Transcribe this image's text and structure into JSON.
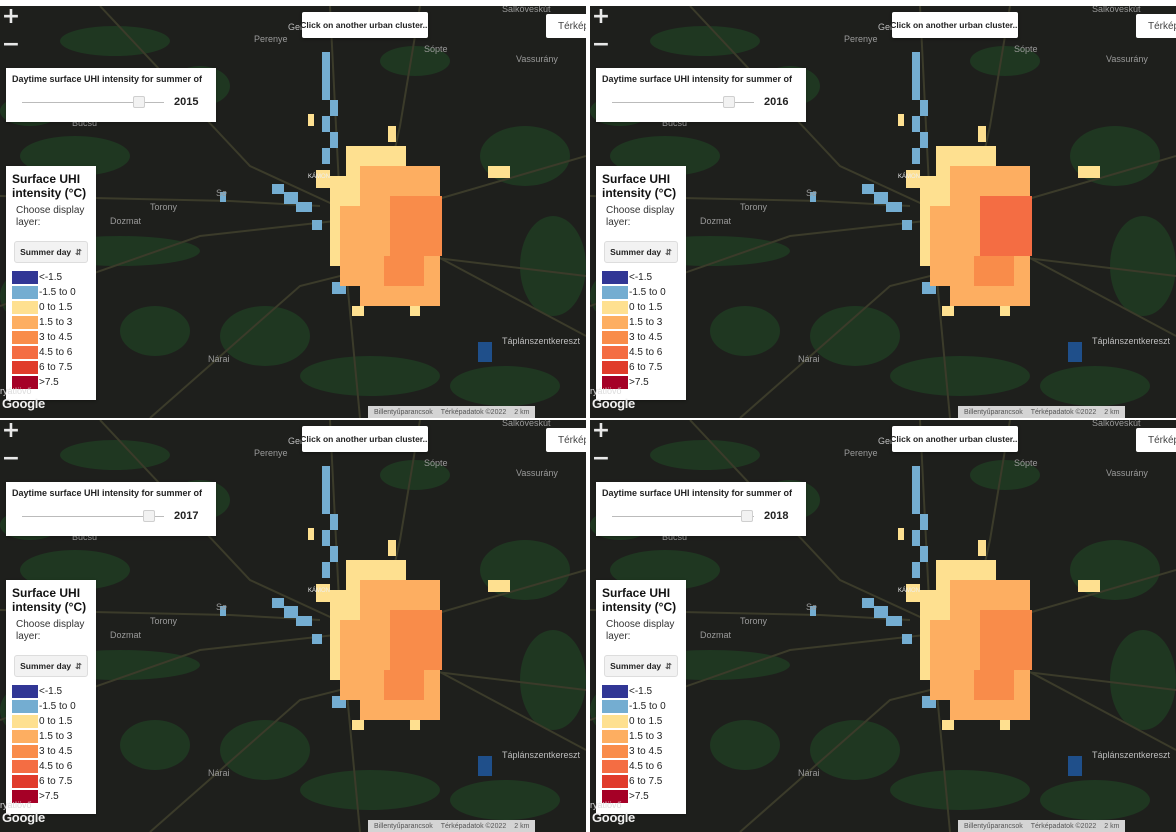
{
  "colors": {
    "background": "#1e1f1c",
    "forest": "#1f3a22",
    "road": "#3b3b2a",
    "water": "#1f4f8a"
  },
  "common": {
    "cluster_button": "Click on another urban cluster...",
    "maptype_button": "Térkép",
    "zoom_in": "+",
    "zoom_out": "−",
    "slider_title": "Daytime surface UHI intensity for summer of",
    "legend_title": "Surface UHI intensity (°C)",
    "legend_subtitle": "Choose display layer:",
    "layer_selected": "Summer day",
    "google_logo": "Google",
    "corner_text": "ryátlövő",
    "attribution_shortcuts": "Billentyűparancsok",
    "attribution_mapdata": "Térképadatok ©2022",
    "attribution_scale": "2 km"
  },
  "legend_items": [
    {
      "label": "<-1.5",
      "color": "#313695"
    },
    {
      "label": "-1.5 to 0",
      "color": "#74add1"
    },
    {
      "label": "0 to 1.5",
      "color": "#fee090"
    },
    {
      "label": "1.5 to 3",
      "color": "#fdae61"
    },
    {
      "label": "3 to 4.5",
      "color": "#f98c4a"
    },
    {
      "label": "4.5 to 6",
      "color": "#f46d43"
    },
    {
      "label": "6 to 7.5",
      "color": "#e03b2b"
    },
    {
      "label": ">7.5",
      "color": "#a50026"
    }
  ],
  "places": {
    "perenye": "Perenye",
    "gencsapati": "Gencsapáti",
    "sopte": "Sópte",
    "vassurany": "Vassurány",
    "salkoveskut": "Salköveskút",
    "bucsu": "Bucsu",
    "dozmat": "Dozmat",
    "torony": "Torony",
    "se": "Se",
    "narai": "Nárai",
    "taplanszentkereszt": "Táplánszentkereszt",
    "kamon": "KÁMON"
  },
  "panels": [
    {
      "year": "2015",
      "slider_fraction": 0.85
    },
    {
      "year": "2016",
      "slider_fraction": 0.85
    },
    {
      "year": "2017",
      "slider_fraction": 0.93
    },
    {
      "year": "2018",
      "slider_fraction": 0.99
    }
  ]
}
